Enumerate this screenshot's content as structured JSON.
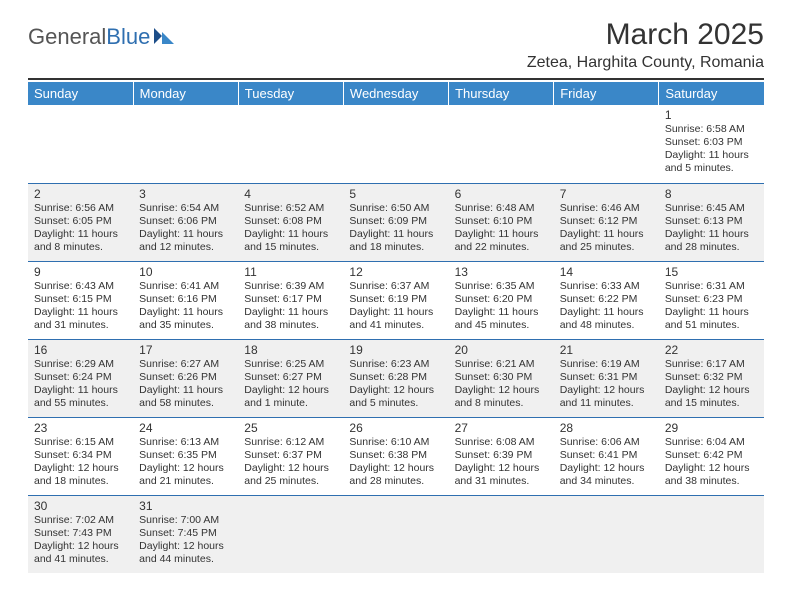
{
  "logo": {
    "text1": "General",
    "text2": "Blue"
  },
  "title": "March 2025",
  "location": "Zetea, Harghita County, Romania",
  "colors": {
    "header_bg": "#3a87c8",
    "header_text": "#ffffff",
    "rule": "#2f6fb0",
    "shade": "#f0f0f0",
    "text": "#333333"
  },
  "weekdays": [
    "Sunday",
    "Monday",
    "Tuesday",
    "Wednesday",
    "Thursday",
    "Friday",
    "Saturday"
  ],
  "weeks": [
    [
      {
        "empty": true
      },
      {
        "empty": true
      },
      {
        "empty": true
      },
      {
        "empty": true
      },
      {
        "empty": true
      },
      {
        "empty": true
      },
      {
        "d": "1",
        "sr": "Sunrise: 6:58 AM",
        "ss": "Sunset: 6:03 PM",
        "dl": "Daylight: 11 hours and 5 minutes."
      }
    ],
    [
      {
        "d": "2",
        "sr": "Sunrise: 6:56 AM",
        "ss": "Sunset: 6:05 PM",
        "dl": "Daylight: 11 hours and 8 minutes."
      },
      {
        "d": "3",
        "sr": "Sunrise: 6:54 AM",
        "ss": "Sunset: 6:06 PM",
        "dl": "Daylight: 11 hours and 12 minutes."
      },
      {
        "d": "4",
        "sr": "Sunrise: 6:52 AM",
        "ss": "Sunset: 6:08 PM",
        "dl": "Daylight: 11 hours and 15 minutes."
      },
      {
        "d": "5",
        "sr": "Sunrise: 6:50 AM",
        "ss": "Sunset: 6:09 PM",
        "dl": "Daylight: 11 hours and 18 minutes."
      },
      {
        "d": "6",
        "sr": "Sunrise: 6:48 AM",
        "ss": "Sunset: 6:10 PM",
        "dl": "Daylight: 11 hours and 22 minutes."
      },
      {
        "d": "7",
        "sr": "Sunrise: 6:46 AM",
        "ss": "Sunset: 6:12 PM",
        "dl": "Daylight: 11 hours and 25 minutes."
      },
      {
        "d": "8",
        "sr": "Sunrise: 6:45 AM",
        "ss": "Sunset: 6:13 PM",
        "dl": "Daylight: 11 hours and 28 minutes."
      }
    ],
    [
      {
        "d": "9",
        "sr": "Sunrise: 6:43 AM",
        "ss": "Sunset: 6:15 PM",
        "dl": "Daylight: 11 hours and 31 minutes."
      },
      {
        "d": "10",
        "sr": "Sunrise: 6:41 AM",
        "ss": "Sunset: 6:16 PM",
        "dl": "Daylight: 11 hours and 35 minutes."
      },
      {
        "d": "11",
        "sr": "Sunrise: 6:39 AM",
        "ss": "Sunset: 6:17 PM",
        "dl": "Daylight: 11 hours and 38 minutes."
      },
      {
        "d": "12",
        "sr": "Sunrise: 6:37 AM",
        "ss": "Sunset: 6:19 PM",
        "dl": "Daylight: 11 hours and 41 minutes."
      },
      {
        "d": "13",
        "sr": "Sunrise: 6:35 AM",
        "ss": "Sunset: 6:20 PM",
        "dl": "Daylight: 11 hours and 45 minutes."
      },
      {
        "d": "14",
        "sr": "Sunrise: 6:33 AM",
        "ss": "Sunset: 6:22 PM",
        "dl": "Daylight: 11 hours and 48 minutes."
      },
      {
        "d": "15",
        "sr": "Sunrise: 6:31 AM",
        "ss": "Sunset: 6:23 PM",
        "dl": "Daylight: 11 hours and 51 minutes."
      }
    ],
    [
      {
        "d": "16",
        "sr": "Sunrise: 6:29 AM",
        "ss": "Sunset: 6:24 PM",
        "dl": "Daylight: 11 hours and 55 minutes."
      },
      {
        "d": "17",
        "sr": "Sunrise: 6:27 AM",
        "ss": "Sunset: 6:26 PM",
        "dl": "Daylight: 11 hours and 58 minutes."
      },
      {
        "d": "18",
        "sr": "Sunrise: 6:25 AM",
        "ss": "Sunset: 6:27 PM",
        "dl": "Daylight: 12 hours and 1 minute."
      },
      {
        "d": "19",
        "sr": "Sunrise: 6:23 AM",
        "ss": "Sunset: 6:28 PM",
        "dl": "Daylight: 12 hours and 5 minutes."
      },
      {
        "d": "20",
        "sr": "Sunrise: 6:21 AM",
        "ss": "Sunset: 6:30 PM",
        "dl": "Daylight: 12 hours and 8 minutes."
      },
      {
        "d": "21",
        "sr": "Sunrise: 6:19 AM",
        "ss": "Sunset: 6:31 PM",
        "dl": "Daylight: 12 hours and 11 minutes."
      },
      {
        "d": "22",
        "sr": "Sunrise: 6:17 AM",
        "ss": "Sunset: 6:32 PM",
        "dl": "Daylight: 12 hours and 15 minutes."
      }
    ],
    [
      {
        "d": "23",
        "sr": "Sunrise: 6:15 AM",
        "ss": "Sunset: 6:34 PM",
        "dl": "Daylight: 12 hours and 18 minutes."
      },
      {
        "d": "24",
        "sr": "Sunrise: 6:13 AM",
        "ss": "Sunset: 6:35 PM",
        "dl": "Daylight: 12 hours and 21 minutes."
      },
      {
        "d": "25",
        "sr": "Sunrise: 6:12 AM",
        "ss": "Sunset: 6:37 PM",
        "dl": "Daylight: 12 hours and 25 minutes."
      },
      {
        "d": "26",
        "sr": "Sunrise: 6:10 AM",
        "ss": "Sunset: 6:38 PM",
        "dl": "Daylight: 12 hours and 28 minutes."
      },
      {
        "d": "27",
        "sr": "Sunrise: 6:08 AM",
        "ss": "Sunset: 6:39 PM",
        "dl": "Daylight: 12 hours and 31 minutes."
      },
      {
        "d": "28",
        "sr": "Sunrise: 6:06 AM",
        "ss": "Sunset: 6:41 PM",
        "dl": "Daylight: 12 hours and 34 minutes."
      },
      {
        "d": "29",
        "sr": "Sunrise: 6:04 AM",
        "ss": "Sunset: 6:42 PM",
        "dl": "Daylight: 12 hours and 38 minutes."
      }
    ],
    [
      {
        "d": "30",
        "sr": "Sunrise: 7:02 AM",
        "ss": "Sunset: 7:43 PM",
        "dl": "Daylight: 12 hours and 41 minutes."
      },
      {
        "d": "31",
        "sr": "Sunrise: 7:00 AM",
        "ss": "Sunset: 7:45 PM",
        "dl": "Daylight: 12 hours and 44 minutes."
      },
      {
        "empty": true
      },
      {
        "empty": true
      },
      {
        "empty": true
      },
      {
        "empty": true
      },
      {
        "empty": true
      }
    ]
  ]
}
